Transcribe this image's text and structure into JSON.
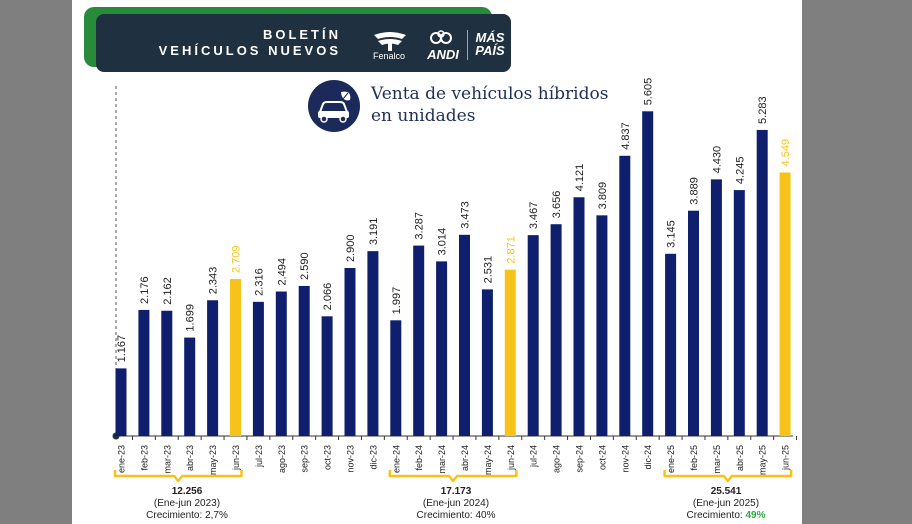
{
  "banner": {
    "line1": "BOLETÍN",
    "line2": "VEHÍCULOS NUEVOS",
    "logo1_label": "Fenalco",
    "logo2_label": "ANDI",
    "logo3_line1": "MÁS",
    "logo3_line2": "PAÍS"
  },
  "heading": {
    "line1": "Venta de vehículos híbridos",
    "line2": "en unidades",
    "icon": "hybrid-car-icon"
  },
  "colors": {
    "bar": "#0f1f6e",
    "highlight": "#f7c31b",
    "axis": "#333333",
    "brace": "#f7c31b",
    "green_growth": "#2eaa44"
  },
  "chart_data": {
    "type": "bar",
    "categories": [
      "ene-23",
      "feb-23",
      "mar-23",
      "abr-23",
      "may-23",
      "jun-23",
      "jul-23",
      "ago-23",
      "sep-23",
      "oct-23",
      "nov-23",
      "dic-23",
      "ene-24",
      "feb-24",
      "mar-24",
      "abr-24",
      "may-24",
      "jun-24",
      "jul-24",
      "ago-24",
      "sep-24",
      "oct-24",
      "nov-24",
      "dic-24",
      "ene-25",
      "feb-25",
      "mar-25",
      "abr-25",
      "may-25",
      "jun-25"
    ],
    "values": [
      1167,
      2176,
      2162,
      1699,
      2343,
      2709,
      2316,
      2494,
      2590,
      2066,
      2900,
      3191,
      1997,
      3287,
      3014,
      3473,
      2531,
      2871,
      3467,
      3656,
      4121,
      3809,
      4837,
      5605,
      3145,
      3889,
      4430,
      4245,
      5283,
      4549
    ],
    "value_labels": [
      "1.167",
      "2.176",
      "2.162",
      "1.699",
      "2.343",
      "2.709",
      "2.316",
      "2.494",
      "2.590",
      "2.066",
      "2.900",
      "3.191",
      "1.997",
      "3.287",
      "3.014",
      "3.473",
      "2.531",
      "2.871",
      "3.467",
      "3.656",
      "4.121",
      "3.809",
      "4.837",
      "5.605",
      "3.145",
      "3.889",
      "4.430",
      "4.245",
      "5.283",
      "4.549"
    ],
    "highlighted_categories": [
      "jun-23",
      "jun-24",
      "jun-25"
    ],
    "ylim": [
      0,
      5800
    ],
    "grid": false,
    "title": "Venta de vehículos híbridos en unidades",
    "xlabel": "",
    "ylabel": ""
  },
  "summaries": [
    {
      "total": "12.256",
      "period": "(Ene-jun 2023)",
      "growth_label": "Crecimiento:",
      "growth_value": "2,7%",
      "highlight": false
    },
    {
      "total": "17.173",
      "period": "(Ene-jun 2024)",
      "growth_label": "Crecimiento:",
      "growth_value": "40%",
      "highlight": false
    },
    {
      "total": "25.541",
      "period": "(Ene-jun 2025)",
      "growth_label": "Crecimiento:",
      "growth_value": "49%",
      "highlight": true
    }
  ]
}
